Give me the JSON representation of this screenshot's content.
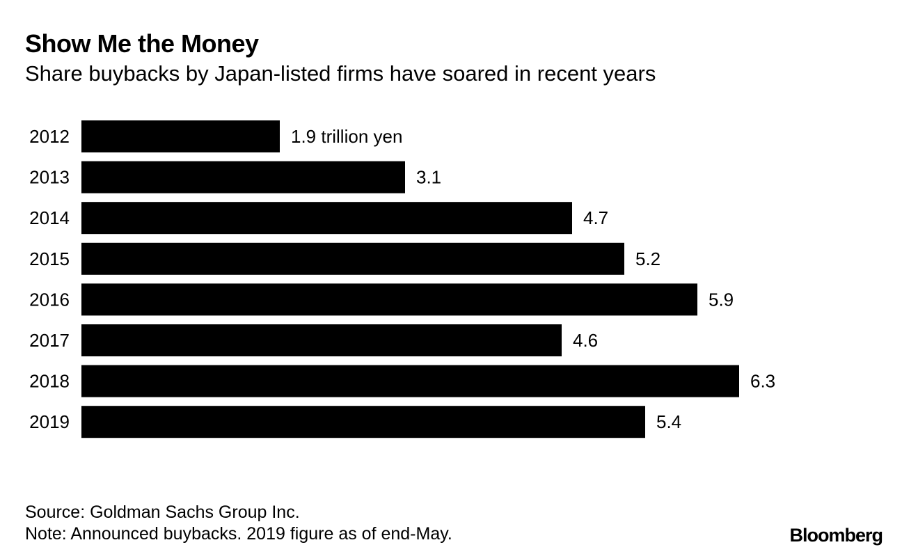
{
  "header": {
    "title": "Show Me the Money",
    "subtitle": "Share buybacks by Japan-listed firms have soared in recent years"
  },
  "footer": {
    "source": "Source: Goldman Sachs Group Inc.",
    "note": "Note: Announced buybacks. 2019 figure as of end-May.",
    "logo": "Bloomberg"
  },
  "colors": {
    "bar": "#000000",
    "text": "#000000",
    "background": "#ffffff"
  },
  "chart_data": {
    "type": "bar",
    "orientation": "horizontal",
    "title": "Show Me the Money",
    "subtitle": "Share buybacks by Japan-listed firms have soared in recent years",
    "categories": [
      "2012",
      "2013",
      "2014",
      "2015",
      "2016",
      "2017",
      "2018",
      "2019"
    ],
    "values": [
      1.9,
      3.1,
      4.7,
      5.2,
      5.9,
      4.6,
      6.3,
      5.4
    ],
    "value_labels": [
      "1.9 trillion yen",
      "3.1",
      "4.7",
      "5.2",
      "5.9",
      "4.6",
      "6.3",
      "5.4"
    ],
    "unit": "trillion yen",
    "xlabel": "",
    "ylabel": "",
    "xlim": [
      0,
      6.3
    ],
    "grid": false,
    "legend": "none"
  }
}
